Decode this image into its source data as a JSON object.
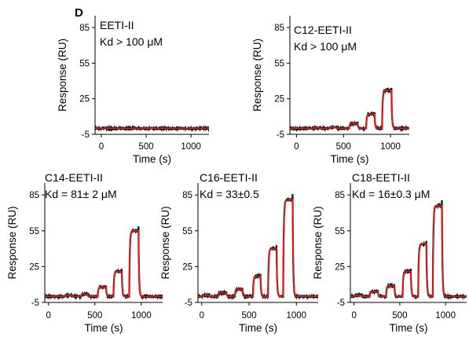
{
  "figure": {
    "panel_letter": "D",
    "colors": {
      "fit": "#e31a1c",
      "data": "#111111",
      "axis": "#000000"
    }
  },
  "chart_data": [
    {
      "type": "line",
      "annotation": [
        "EETI-II",
        "Kd > 100 μM"
      ],
      "xlabel": "Time (s)",
      "ylabel": "Response (RU)",
      "xlim": [
        -70,
        1200
      ],
      "ylim": [
        -5,
        95
      ],
      "xticks": [
        0,
        500,
        1000
      ],
      "yticks": [
        -5,
        25,
        55,
        85
      ],
      "injections": [
        {
          "start": 60,
          "end": 140,
          "level": 0
        },
        {
          "start": 250,
          "end": 330,
          "level": 0
        },
        {
          "start": 430,
          "end": 510,
          "level": 0
        },
        {
          "start": 600,
          "end": 680,
          "level": 0
        },
        {
          "start": 780,
          "end": 860,
          "level": 0
        },
        {
          "start": 930,
          "end": 1010,
          "level": 0
        }
      ],
      "series": [
        {},
        {}
      ]
    },
    {
      "type": "line",
      "annotation": [
        "C12-EETI-II",
        "Kd > 100 μM"
      ],
      "xlabel": "Time (s)",
      "ylabel": "Response (RU)",
      "xlim": [
        -70,
        1200
      ],
      "ylim": [
        -5,
        95
      ],
      "xticks": [
        0,
        500,
        1000
      ],
      "yticks": [
        -5,
        25,
        55,
        85
      ],
      "injections": [
        {
          "start": 0,
          "end": 80,
          "level": 0
        },
        {
          "start": 170,
          "end": 250,
          "level": 0.5
        },
        {
          "start": 350,
          "end": 430,
          "level": 1
        },
        {
          "start": 560,
          "end": 650,
          "level": 4
        },
        {
          "start": 740,
          "end": 830,
          "level": 12
        },
        {
          "start": 910,
          "end": 1010,
          "level": 32
        }
      ],
      "series": [
        {},
        {}
      ]
    },
    {
      "type": "line",
      "annotation": [
        "C14-EETI-II",
        "Kd = 81± 2 μM"
      ],
      "xlabel": "Time (s)",
      "ylabel": "Response (RU)",
      "xlim": [
        -40,
        1230
      ],
      "ylim": [
        -5,
        95
      ],
      "xticks": [
        0,
        500,
        1000
      ],
      "yticks": [
        -5,
        25,
        55,
        85
      ],
      "injections": [
        {
          "start": 0,
          "end": 70,
          "level": 0
        },
        {
          "start": 170,
          "end": 250,
          "level": 1
        },
        {
          "start": 350,
          "end": 420,
          "level": 2
        },
        {
          "start": 530,
          "end": 620,
          "level": 8
        },
        {
          "start": 700,
          "end": 790,
          "level": 21
        },
        {
          "start": 870,
          "end": 970,
          "level": 55
        }
      ],
      "series": [
        {},
        {}
      ]
    },
    {
      "type": "line",
      "annotation": [
        "C16-EETI-II",
        "Kd = 33±0.5"
      ],
      "xlabel": "Time (s)",
      "ylabel": "Response (RU)",
      "xlim": [
        -40,
        1230
      ],
      "ylim": [
        -5,
        95
      ],
      "xticks": [
        0,
        500,
        1000
      ],
      "yticks": [
        -5,
        25,
        55,
        85
      ],
      "injections": [
        {
          "start": 0,
          "end": 80,
          "level": 1
        },
        {
          "start": 170,
          "end": 260,
          "level": 3
        },
        {
          "start": 350,
          "end": 430,
          "level": 6
        },
        {
          "start": 540,
          "end": 620,
          "level": 17
        },
        {
          "start": 700,
          "end": 790,
          "level": 40
        },
        {
          "start": 860,
          "end": 960,
          "level": 81
        }
      ],
      "series": [
        {},
        {}
      ]
    },
    {
      "type": "line",
      "annotation": [
        "C18-EETI-II",
        "Kd = 16±0.3 μM"
      ],
      "xlabel": "Time (s)",
      "ylabel": "Response (RU)",
      "xlim": [
        -40,
        1230
      ],
      "ylim": [
        -5,
        95
      ],
      "xticks": [
        0,
        500,
        1000
      ],
      "yticks": [
        -5,
        25,
        55,
        85
      ],
      "injections": [
        {
          "start": 0,
          "end": 80,
          "level": 1
        },
        {
          "start": 170,
          "end": 260,
          "level": 4
        },
        {
          "start": 350,
          "end": 440,
          "level": 9
        },
        {
          "start": 530,
          "end": 620,
          "level": 21
        },
        {
          "start": 700,
          "end": 790,
          "level": 44
        },
        {
          "start": 860,
          "end": 960,
          "level": 76
        }
      ],
      "series": [
        {},
        {}
      ]
    }
  ]
}
